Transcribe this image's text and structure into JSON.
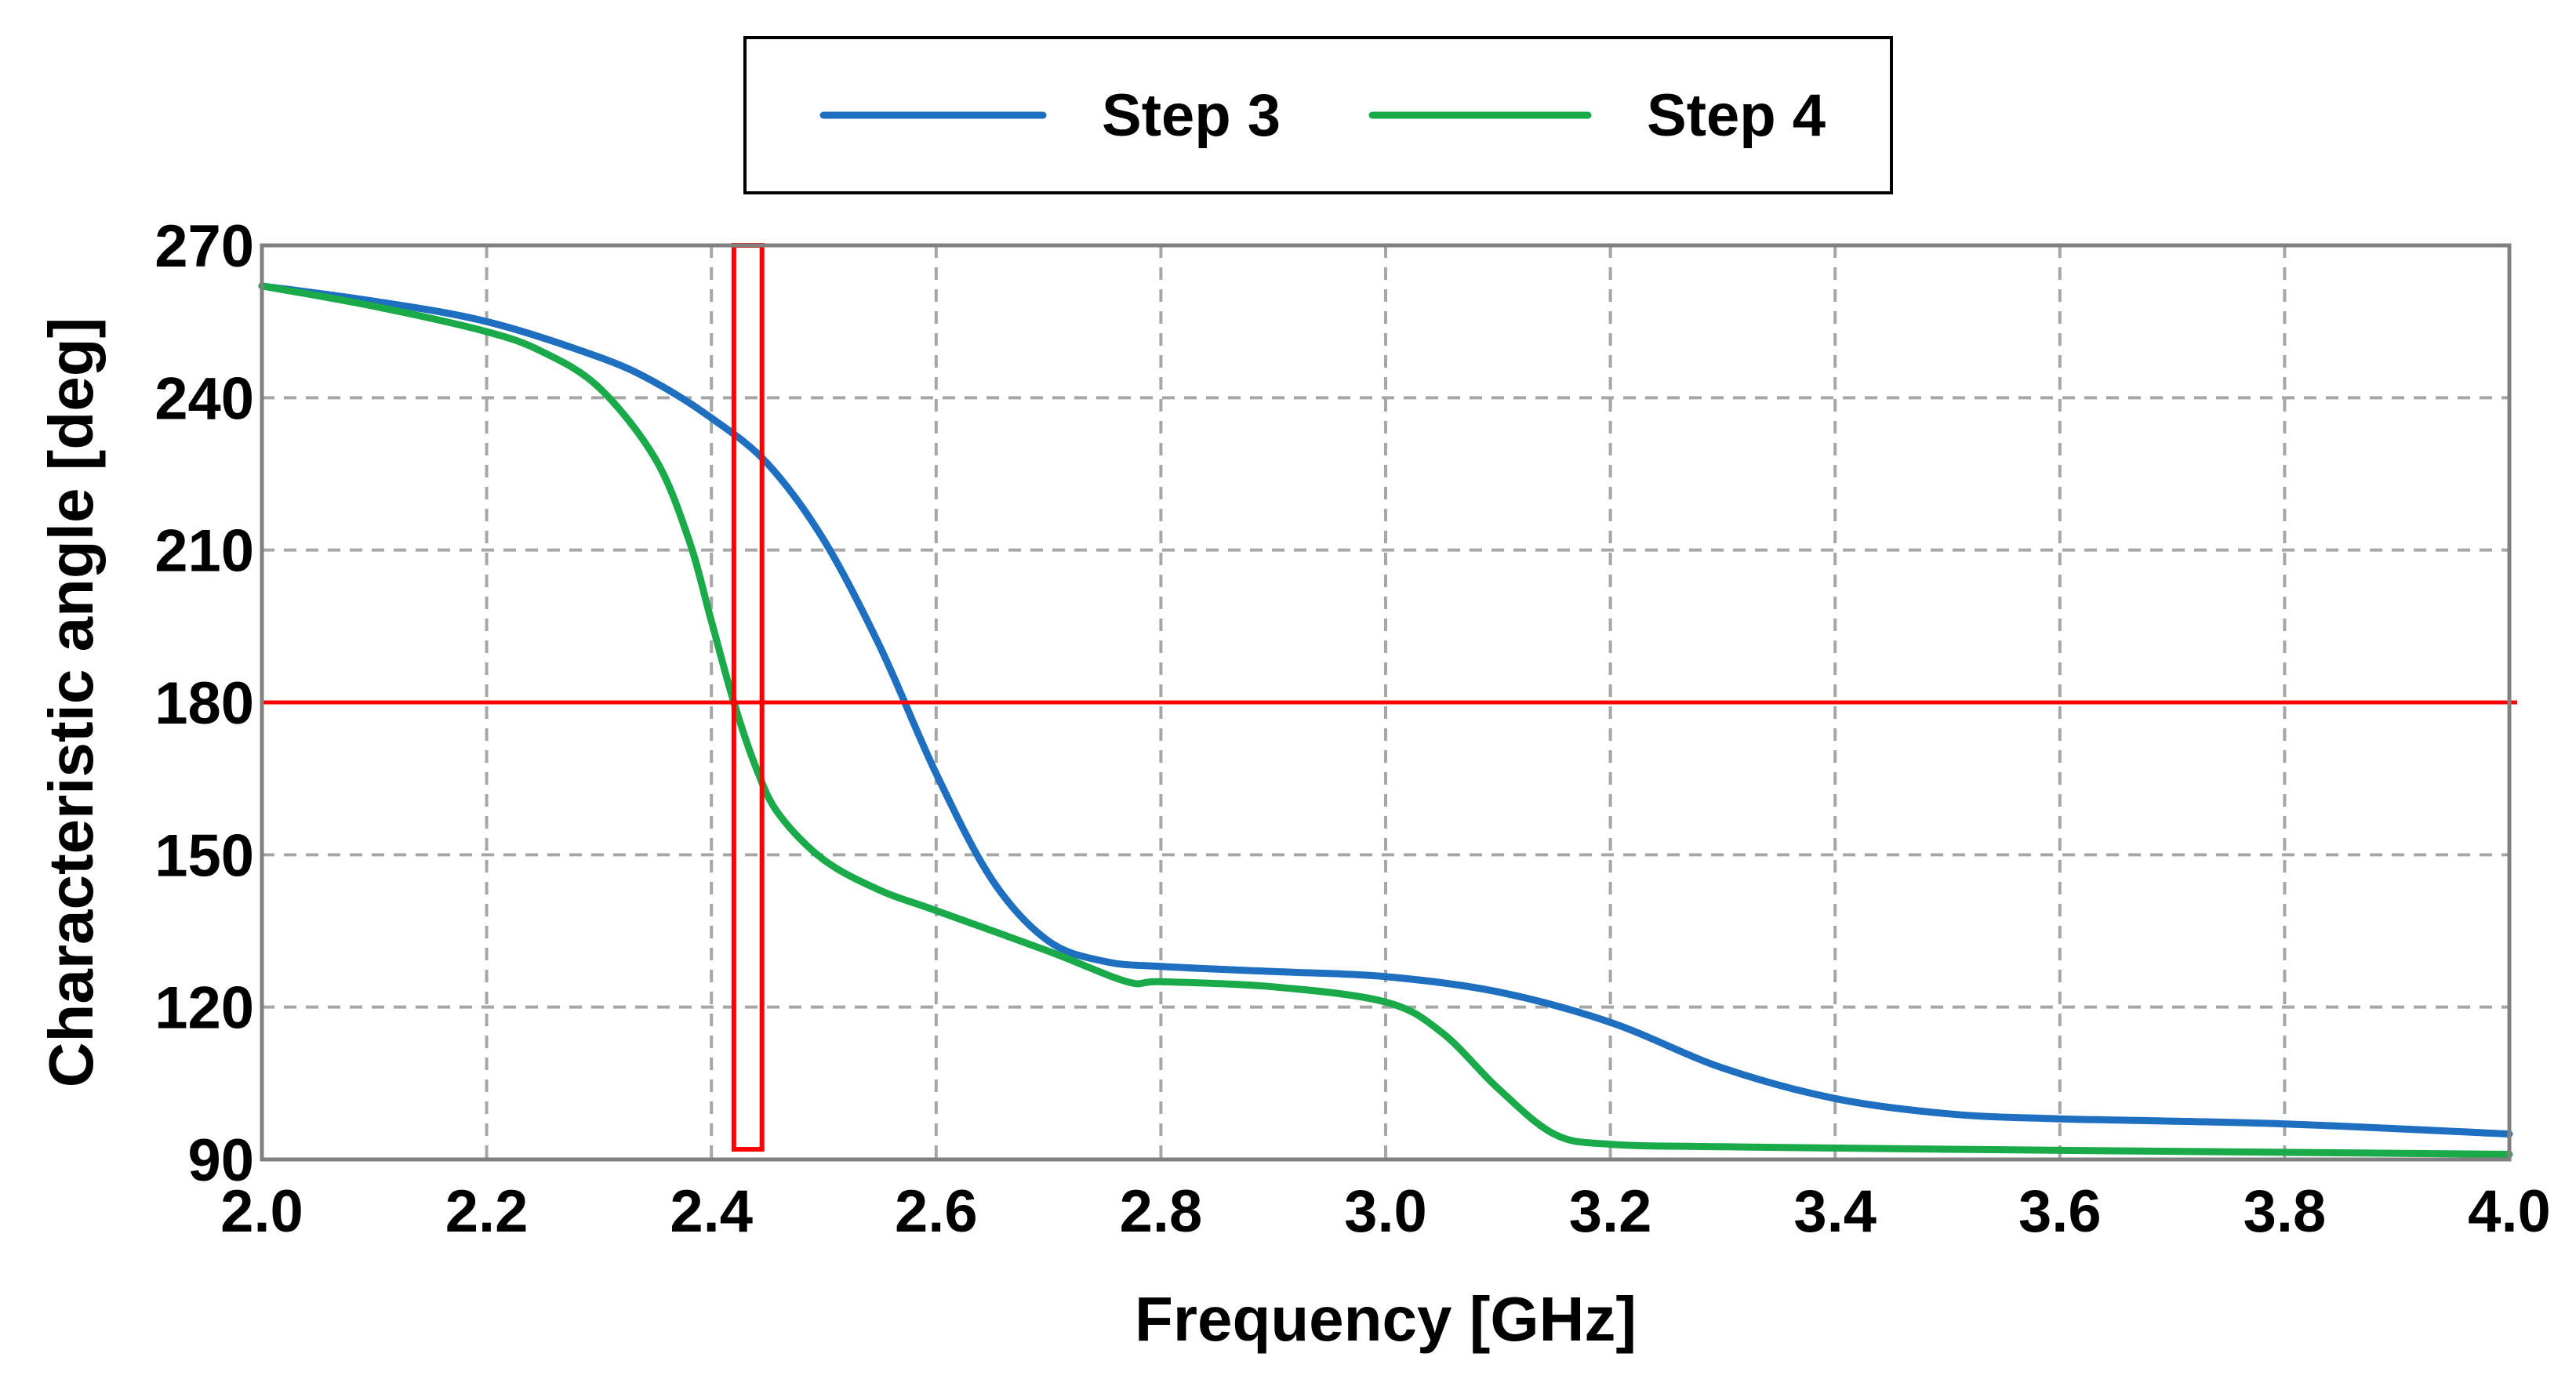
{
  "chart_data": {
    "type": "line",
    "title": "",
    "xlabel": "Frequency [GHz]",
    "ylabel": "Characteristic angle [deg]",
    "xlim": [
      2.0,
      4.0
    ],
    "ylim": [
      90,
      270
    ],
    "xticks": [
      2.0,
      2.2,
      2.4,
      2.6,
      2.8,
      3.0,
      3.2,
      3.4,
      3.6,
      3.8,
      4.0
    ],
    "xtick_labels": [
      "2.0",
      "2.2",
      "2.4",
      "2.6",
      "2.8",
      "3.0",
      "3.2",
      "3.4",
      "3.6",
      "3.8",
      "4.0"
    ],
    "yticks": [
      90,
      120,
      150,
      180,
      210,
      240,
      270
    ],
    "ytick_labels": [
      "90",
      "120",
      "150",
      "180",
      "210",
      "240",
      "270"
    ],
    "grid": true,
    "legend_position": "top-center",
    "series": [
      {
        "name": "Step 3",
        "color": "#1f6fc0",
        "x": [
          2.0,
          2.1,
          2.2,
          2.3,
          2.35,
          2.4,
          2.45,
          2.5,
          2.55,
          2.6,
          2.65,
          2.7,
          2.75,
          2.8,
          2.9,
          3.0,
          3.1,
          3.2,
          3.3,
          3.4,
          3.5,
          3.6,
          3.8,
          4.0
        ],
        "y": [
          262,
          259,
          255,
          248,
          243,
          236,
          227,
          212,
          191,
          166,
          145,
          133,
          129,
          128,
          127,
          126,
          123,
          117,
          108,
          102,
          99,
          98,
          97,
          95
        ]
      },
      {
        "name": "Step 4",
        "color": "#1aaa4a",
        "x": [
          2.0,
          2.1,
          2.2,
          2.25,
          2.3,
          2.35,
          2.38,
          2.4,
          2.42,
          2.44,
          2.46,
          2.5,
          2.55,
          2.6,
          2.7,
          2.77,
          2.8,
          2.9,
          3.0,
          3.05,
          3.1,
          3.15,
          3.2,
          3.3,
          3.5,
          4.0
        ],
        "y": [
          262,
          258,
          253,
          249,
          242,
          228,
          212,
          196,
          180,
          167,
          158,
          149,
          143,
          139,
          131,
          125,
          125,
          124,
          121,
          115,
          104,
          95,
          93,
          92.5,
          92,
          91
        ]
      }
    ],
    "annotations": [
      {
        "type": "hline",
        "y": 180,
        "color": "#ff0000"
      },
      {
        "type": "rectangle",
        "x_range": [
          2.42,
          2.445
        ],
        "y_range": [
          92,
          270
        ],
        "color": "#ff0000"
      }
    ]
  }
}
